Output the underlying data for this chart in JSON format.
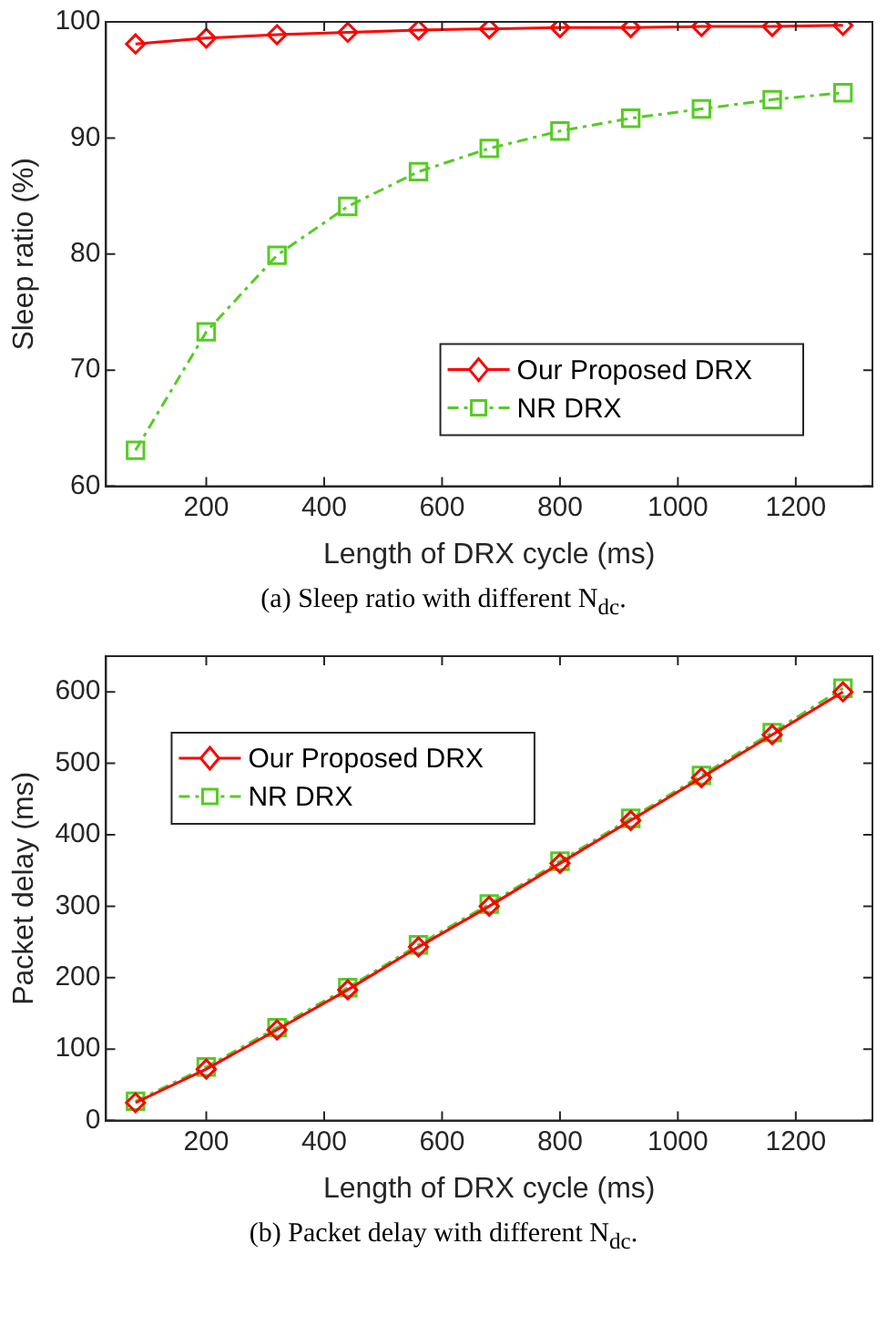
{
  "chart_data": [
    {
      "type": "line",
      "ylabel": "Sleep ratio (%)",
      "xlabel": "Length of DRX cycle (ms)",
      "annotations": [
        "(a) Sleep ratio with different N$_{dc}$."
      ],
      "x": [
        80,
        200,
        320,
        440,
        560,
        680,
        800,
        920,
        1040,
        1160,
        1280
      ],
      "series": [
        {
          "name": "Our Proposed DRX",
          "color": "#ff0000",
          "marker": "diamond",
          "line_style": "solid",
          "values": [
            98.1,
            98.6,
            98.9,
            99.1,
            99.3,
            99.4,
            99.5,
            99.5,
            99.6,
            99.6,
            99.7
          ]
        },
        {
          "name": "NR DRX",
          "color": "#55cc22",
          "marker": "square",
          "line_style": "dashed",
          "values": [
            63.1,
            73.3,
            79.9,
            84.1,
            87.1,
            89.1,
            90.6,
            91.7,
            92.5,
            93.3,
            93.9
          ]
        }
      ],
      "xlim": [
        30,
        1330
      ],
      "xticks": [
        200,
        400,
        600,
        800,
        1000,
        1200
      ],
      "ylim": [
        60,
        100
      ],
      "yticks": [
        60,
        70,
        80,
        90,
        100
      ],
      "grid": false,
      "legend": "bottom right"
    },
    {
      "type": "line",
      "ylabel": "Packet delay (ms)",
      "xlabel": "Length of DRX cycle (ms)",
      "annotations": [
        "(b) Packet delay with different N$_{dc}$."
      ],
      "x": [
        80,
        200,
        320,
        440,
        560,
        680,
        800,
        920,
        1040,
        1160,
        1280
      ],
      "series": [
        {
          "name": "Our Proposed DRX",
          "color": "#ff0000",
          "marker": "diamond",
          "line_style": "solid",
          "values": [
            25,
            72,
            127,
            183,
            243,
            300,
            360,
            420,
            480,
            540,
            600
          ]
        },
        {
          "name": "NR DRX",
          "color": "#55cc22",
          "marker": "square",
          "line_style": "dashed",
          "values": [
            27,
            75,
            130,
            186,
            246,
            303,
            363,
            423,
            483,
            543,
            605
          ]
        }
      ],
      "xlim": [
        30,
        1330
      ],
      "xticks": [
        200,
        400,
        600,
        800,
        1000,
        1200
      ],
      "ylim": [
        0,
        650
      ],
      "yticks": [
        0,
        100,
        200,
        300,
        400,
        500,
        600
      ],
      "grid": false,
      "legend": "top left"
    }
  ]
}
